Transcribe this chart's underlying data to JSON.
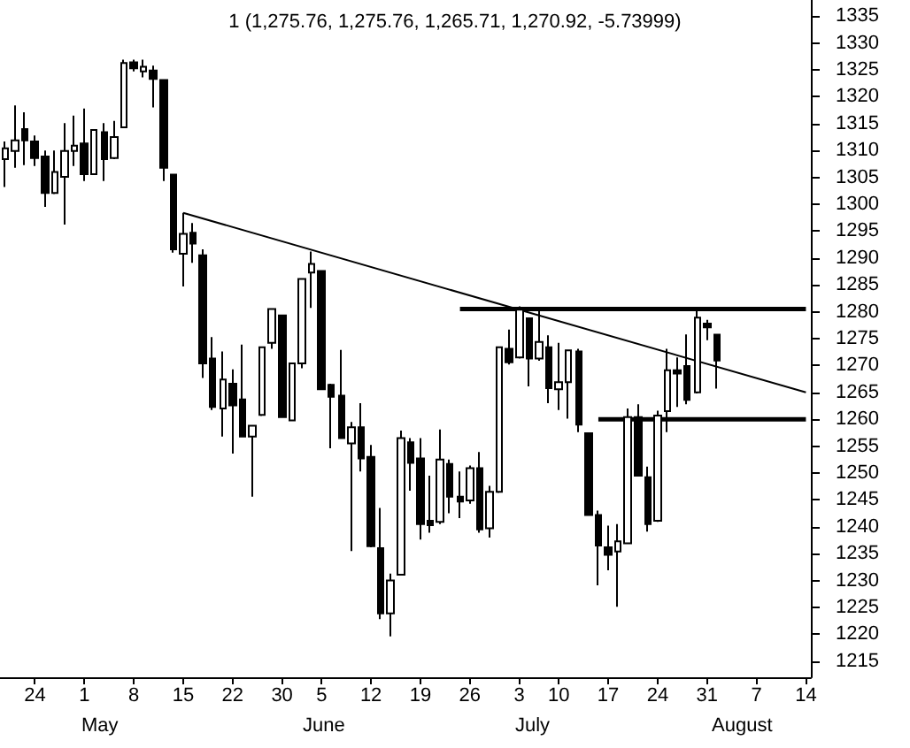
{
  "chart_data": {
    "type": "candlestick",
    "title": "1 (1,275.76, 1,275.76, 1,265.71, 1,270.92, -5.73999)",
    "categories": [
      null,
      null,
      null,
      "24",
      null,
      null,
      null,
      null,
      "1",
      null,
      null,
      null,
      null,
      "8",
      null,
      null,
      null,
      null,
      "15",
      null,
      null,
      null,
      null,
      "22",
      null,
      null,
      null,
      null,
      "30",
      null,
      null,
      null,
      "5",
      null,
      null,
      null,
      null,
      "12",
      null,
      null,
      null,
      null,
      "19",
      null,
      null,
      null,
      null,
      "26",
      null,
      null,
      null,
      null,
      "3",
      null,
      null,
      null,
      "10",
      null,
      null,
      null,
      null,
      "17",
      null,
      null,
      null,
      null,
      "24",
      null,
      null,
      null,
      null,
      "31",
      null,
      null,
      null,
      null,
      "7",
      null,
      null,
      null,
      null,
      "14"
    ],
    "ohlc": [
      [
        1308.4,
        1311.7,
        1303.2,
        1310.4
      ],
      [
        1309.9,
        1318.4,
        1306.8,
        1311.9
      ],
      [
        1314.0,
        1317.1,
        1307.3,
        1311.9
      ],
      [
        1311.7,
        1312.8,
        1307.1,
        1308.6
      ],
      [
        1308.9,
        1310.0,
        1299.5,
        1302.1
      ],
      [
        1302.1,
        1310.0,
        1301.9,
        1306.0
      ],
      [
        1305.1,
        1315.1,
        1296.2,
        1309.9
      ],
      [
        1309.9,
        1316.5,
        1307.1,
        1310.9
      ],
      [
        1311.3,
        1317.8,
        1304.3,
        1305.6
      ],
      [
        1305.6,
        1314.0,
        1305.5,
        1313.8
      ],
      [
        1313.4,
        1315.1,
        1304.3,
        1308.4
      ],
      [
        1308.6,
        1315.5,
        1308.4,
        1312.5
      ],
      [
        1314.3,
        1326.9,
        1314.3,
        1326.3
      ],
      [
        1326.4,
        1326.9,
        1324.7,
        1325.3
      ],
      [
        1324.7,
        1326.9,
        1323.6,
        1325.6
      ],
      [
        1324.9,
        1325.8,
        1318.0,
        1323.3
      ],
      [
        1323.1,
        1323.1,
        1304.3,
        1306.8
      ],
      [
        1305.5,
        1305.5,
        1291.0,
        1291.6
      ],
      [
        1290.8,
        1298.4,
        1284.7,
        1294.5
      ],
      [
        1294.7,
        1296.5,
        1289.1,
        1292.7
      ],
      [
        1290.5,
        1291.6,
        1267.7,
        1270.4
      ],
      [
        1271.3,
        1275.3,
        1261.7,
        1262.3
      ],
      [
        1262.0,
        1272.6,
        1256.8,
        1267.4
      ],
      [
        1266.6,
        1269.3,
        1253.6,
        1262.6
      ],
      [
        1263.7,
        1273.9,
        1256.8,
        1256.8
      ],
      [
        1256.8,
        1258.8,
        1245.6,
        1258.8
      ],
      [
        1260.8,
        1273.4,
        1260.6,
        1273.4
      ],
      [
        1274.2,
        1280.5,
        1273.1,
        1280.5
      ],
      [
        1279.3,
        1279.3,
        1260.4,
        1260.4
      ],
      [
        1259.8,
        1270.4,
        1259.8,
        1270.4
      ],
      [
        1270.4,
        1286.1,
        1269.5,
        1286.1
      ],
      [
        1287.3,
        1291.2,
        1280.7,
        1288.9
      ],
      [
        1287.6,
        1287.6,
        1265.6,
        1265.6
      ],
      [
        1266.4,
        1266.6,
        1254.6,
        1264.2
      ],
      [
        1264.4,
        1272.9,
        1256.5,
        1256.5
      ],
      [
        1255.5,
        1259.5,
        1235.5,
        1258.5
      ],
      [
        1258.5,
        1263.0,
        1250.3,
        1252.7
      ],
      [
        1253.0,
        1255.2,
        1236.2,
        1236.4
      ],
      [
        1236.0,
        1243.5,
        1222.8,
        1223.9
      ],
      [
        1223.9,
        1231.3,
        1219.6,
        1230.0
      ],
      [
        1231.1,
        1257.9,
        1231.1,
        1256.5
      ],
      [
        1255.7,
        1256.5,
        1246.7,
        1251.9
      ],
      [
        1252.7,
        1256.5,
        1237.6,
        1240.5
      ],
      [
        1241.1,
        1249.5,
        1238.9,
        1240.3
      ],
      [
        1240.9,
        1258.1,
        1240.5,
        1252.5
      ],
      [
        1251.7,
        1252.5,
        1242.5,
        1245.6
      ],
      [
        1245.6,
        1250.3,
        1241.6,
        1244.7
      ],
      [
        1244.9,
        1251.4,
        1244.3,
        1250.9
      ],
      [
        1250.9,
        1253.9,
        1238.9,
        1239.5
      ],
      [
        1239.7,
        1247.6,
        1238.0,
        1246.5
      ],
      [
        1246.5,
        1273.4,
        1246.3,
        1273.4
      ],
      [
        1273.1,
        1276.7,
        1270.2,
        1270.6
      ],
      [
        1271.5,
        1281.0,
        1271.3,
        1280.4
      ],
      [
        1278.8,
        1278.8,
        1266.1,
        1271.3
      ],
      [
        1271.3,
        1280.2,
        1270.9,
        1274.4
      ],
      [
        1273.4,
        1275.6,
        1263.0,
        1265.8
      ],
      [
        1265.6,
        1274.2,
        1261.7,
        1266.9
      ],
      [
        1266.9,
        1272.8,
        1260.1,
        1272.8
      ],
      [
        1272.6,
        1273.1,
        1257.6,
        1259.0
      ],
      [
        1257.4,
        1257.4,
        1242.0,
        1242.2
      ],
      [
        1242.2,
        1243.0,
        1229.1,
        1236.5
      ],
      [
        1236.2,
        1240.2,
        1231.9,
        1234.8
      ],
      [
        1235.4,
        1240.5,
        1225.1,
        1237.3
      ],
      [
        1236.9,
        1262.0,
        1236.9,
        1260.4
      ],
      [
        1260.4,
        1262.8,
        1249.5,
        1249.5
      ],
      [
        1249.2,
        1251.2,
        1239.1,
        1240.5
      ],
      [
        1241.1,
        1261.6,
        1240.9,
        1260.7
      ],
      [
        1261.5,
        1273.1,
        1257.6,
        1269.1
      ],
      [
        1269.1,
        1271.5,
        1262.3,
        1268.5
      ],
      [
        1269.9,
        1275.8,
        1262.8,
        1263.6
      ],
      [
        1265.0,
        1280.2,
        1264.8,
        1278.9
      ],
      [
        1277.8,
        1278.5,
        1274.7,
        1277.1
      ],
      [
        1275.76,
        1275.76,
        1265.71,
        1270.92
      ],
      null,
      null,
      null,
      null,
      null,
      null,
      null,
      null,
      null
    ],
    "series": [
      {
        "type": "line",
        "color": "#000000",
        "values": [
          null,
          null,
          null,
          null,
          null,
          null,
          null,
          null,
          null,
          null,
          null,
          null,
          null,
          null,
          null,
          null,
          null,
          null,
          1298.4,
          null,
          null,
          null,
          null,
          null,
          null,
          null,
          null,
          null,
          null,
          null,
          null,
          null,
          null,
          null,
          null,
          null,
          null,
          null,
          null,
          null,
          null,
          null,
          null,
          null,
          null,
          null,
          null,
          null,
          null,
          null,
          null,
          null,
          null,
          null,
          null,
          null,
          null,
          null,
          null,
          null,
          null,
          null,
          null,
          null,
          null,
          null,
          null,
          null,
          null,
          null,
          null,
          null,
          null,
          null,
          null,
          null,
          null,
          null,
          null,
          null,
          null,
          1265
        ]
      },
      {
        "type": "line",
        "color": "#000000",
        "values": [
          null,
          null,
          null,
          null,
          null,
          null,
          null,
          null,
          null,
          null,
          null,
          null,
          null,
          null,
          null,
          null,
          null,
          null,
          null,
          null,
          null,
          null,
          null,
          null,
          null,
          null,
          null,
          null,
          null,
          null,
          null,
          null,
          null,
          null,
          null,
          null,
          null,
          null,
          null,
          null,
          null,
          null,
          null,
          null,
          null,
          null,
          1280.5,
          null,
          null,
          null,
          null,
          null,
          null,
          null,
          null,
          null,
          null,
          null,
          null,
          null,
          null,
          null,
          null,
          null,
          null,
          null,
          null,
          null,
          null,
          null,
          null,
          null,
          null,
          null,
          null,
          null,
          null,
          null,
          null,
          null,
          null,
          1280.5
        ]
      },
      {
        "type": "line",
        "color": "#000000",
        "values": [
          null,
          null,
          null,
          null,
          null,
          null,
          null,
          null,
          null,
          null,
          null,
          null,
          null,
          null,
          null,
          null,
          null,
          null,
          null,
          null,
          null,
          null,
          null,
          null,
          null,
          null,
          null,
          null,
          null,
          null,
          null,
          null,
          null,
          null,
          null,
          null,
          null,
          null,
          null,
          null,
          null,
          null,
          null,
          null,
          null,
          null,
          null,
          null,
          null,
          null,
          null,
          null,
          null,
          null,
          null,
          null,
          null,
          null,
          null,
          null,
          1260,
          null,
          null,
          null,
          null,
          null,
          null,
          null,
          null,
          null,
          null,
          null,
          null,
          null,
          null,
          null,
          null,
          null,
          null,
          null,
          null,
          1260
        ]
      }
    ],
    "annotations": [
      "May",
      "June",
      "July",
      "August"
    ],
    "ylim": [
      1212,
      1338
    ],
    "yticks": [
      1215,
      1220,
      1225,
      1230,
      1235,
      1240,
      1245,
      1250,
      1255,
      1260,
      1265,
      1270,
      1275,
      1280,
      1285,
      1290,
      1295,
      1300,
      1305,
      1310,
      1315,
      1320,
      1325,
      1330,
      1335
    ],
    "grid": false
  }
}
